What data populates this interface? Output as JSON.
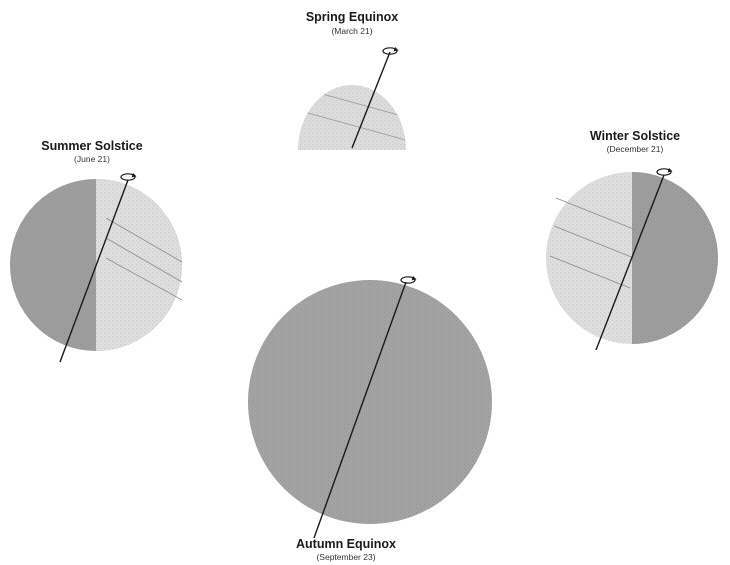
{
  "seasons": {
    "spring": {
      "title": "Spring Equinox",
      "date": "(March 21)"
    },
    "summer": {
      "title": "Summer Solstice",
      "date": "(June 21)"
    },
    "winter": {
      "title": "Winter Solstice",
      "date": "(December 21)"
    },
    "autumn": {
      "title": "Autumn Equinox",
      "date": "(September 23)"
    }
  },
  "colors": {
    "dark_side": "#9e9e9e",
    "light_side": "#dedede",
    "full_dark": "#a3a3a3",
    "axis": "#1a1a1a",
    "rays": "#8a8a8a"
  },
  "icons": {
    "rotation": "rotation-arrow-icon"
  }
}
